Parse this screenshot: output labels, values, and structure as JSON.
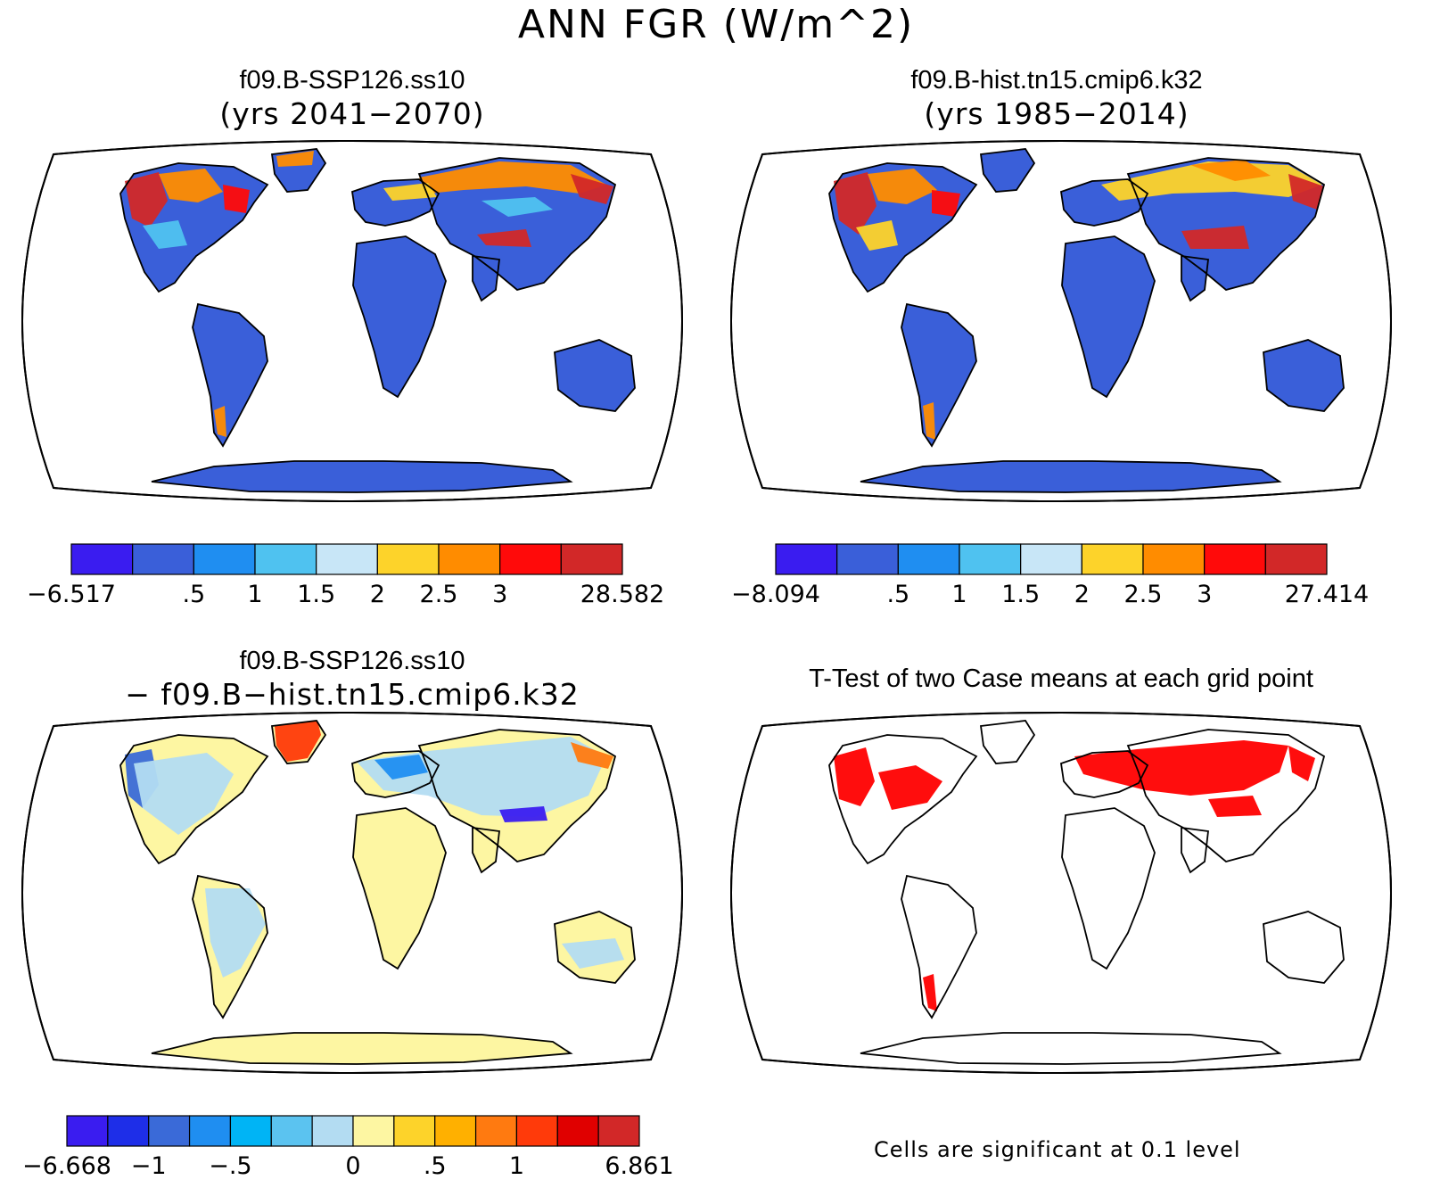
{
  "figure": {
    "title": "ANN FGR (W/m^2)"
  },
  "panels": [
    {
      "id": "case1",
      "title": "f09.B-SSP126.ss10",
      "subtitle": "(yrs 2041−2070)",
      "land_color": "#3a5fd9",
      "colorbar": {
        "colors": [
          "#3a1cf0",
          "#3a5fd9",
          "#1f8ef1",
          "#4fc2f0",
          "#c8e6f7",
          "#fdd32a",
          "#ff8c00",
          "#ff0a0a",
          "#d22828"
        ],
        "labels": [
          "−6.517",
          ".5",
          "1",
          "1.5",
          "2",
          "2.5",
          "3",
          "28.582"
        ]
      }
    },
    {
      "id": "case2",
      "title": "f09.B-hist.tn15.cmip6.k32",
      "subtitle": "(yrs 1985−2014)",
      "land_color": "#3a5fd9",
      "colorbar": {
        "colors": [
          "#3a1cf0",
          "#3a5fd9",
          "#1f8ef1",
          "#4fc2f0",
          "#c8e6f7",
          "#fdd32a",
          "#ff8c00",
          "#ff0a0a",
          "#d22828"
        ],
        "labels": [
          "−8.094",
          ".5",
          "1",
          "1.5",
          "2",
          "2.5",
          "3",
          "27.414"
        ]
      }
    },
    {
      "id": "diff",
      "title": "f09.B-SSP126.ss10",
      "subtitle": "− f09.B−hist.tn15.cmip6.k32",
      "land_color": "#fdf6a2",
      "colorbar": {
        "colors": [
          "#3a1cf0",
          "#1e2ee8",
          "#3a6ad8",
          "#1f8ef1",
          "#00b4f5",
          "#5bc3f0",
          "#b3dcf2",
          "#fdf6a2",
          "#fdd32a",
          "#ffb000",
          "#ff7a10",
          "#ff3a0a",
          "#e00000",
          "#d22828"
        ],
        "labels": [
          "−6.668",
          "−1",
          "−.5",
          "0",
          ".5",
          "1",
          "6.861"
        ]
      }
    },
    {
      "id": "ttest",
      "title": "T-Test of two Case means at each grid point",
      "land_color": "#ffffff",
      "highlight_color": "#ff0000",
      "note": "Cells are significant at 0.1 level"
    }
  ]
}
